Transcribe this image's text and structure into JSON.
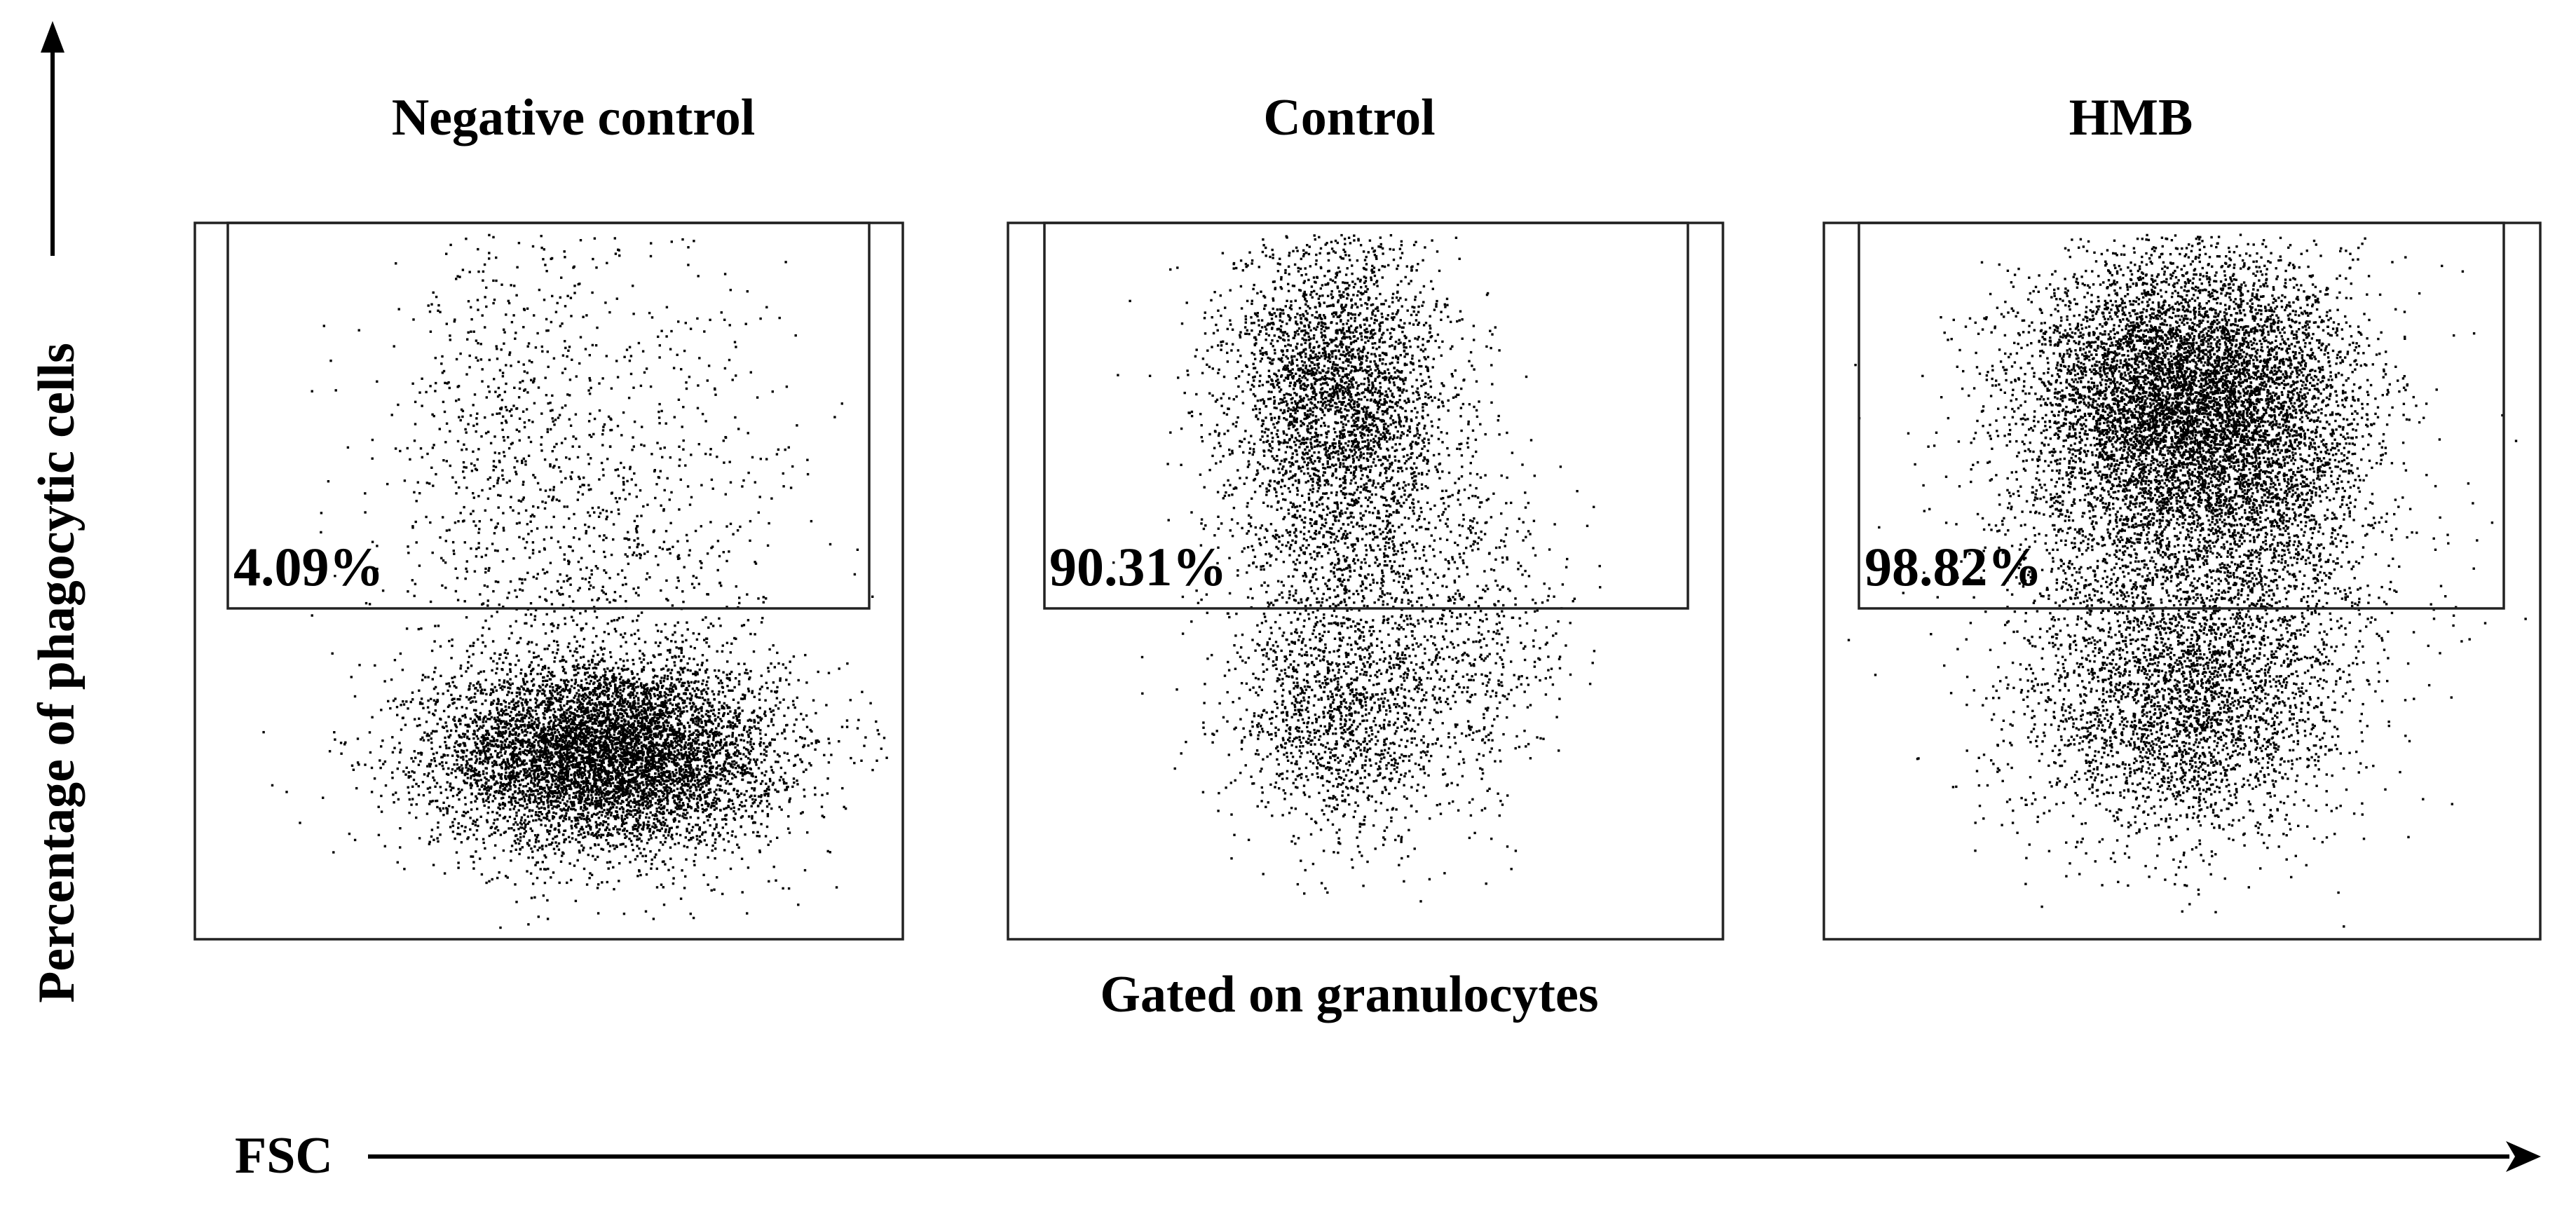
{
  "chart_data": {
    "type": "scatter",
    "y_axis_label": "Percentage of phagocytic cells",
    "x_axis_label": "FSC",
    "footer_label": "Gated on granulocytes",
    "grid": false,
    "point_color": "#000000",
    "panels": [
      {
        "title": "Negative control",
        "gate_percent": "4.09%",
        "clusters": [
          {
            "cx": 0.58,
            "cy": 0.26,
            "sx": 0.12,
            "sy": 0.065,
            "n": 7000
          },
          {
            "cx": 0.56,
            "cy": 0.56,
            "sx": 0.14,
            "sy": 0.22,
            "n": 1300
          },
          {
            "cx": 0.42,
            "cy": 0.72,
            "sx": 0.06,
            "sy": 0.13,
            "n": 260
          }
        ]
      },
      {
        "title": "Control",
        "gate_percent": "90.31%",
        "clusters": [
          {
            "cx": 0.46,
            "cy": 0.78,
            "sx": 0.075,
            "sy": 0.11,
            "n": 2600
          },
          {
            "cx": 0.48,
            "cy": 0.58,
            "sx": 0.09,
            "sy": 0.15,
            "n": 1500
          },
          {
            "cx": 0.47,
            "cy": 0.31,
            "sx": 0.08,
            "sy": 0.085,
            "n": 1300
          },
          {
            "cx": 0.66,
            "cy": 0.42,
            "sx": 0.06,
            "sy": 0.11,
            "n": 450
          }
        ]
      },
      {
        "title": "HMB",
        "gate_percent": "98.82%",
        "clusters": [
          {
            "cx": 0.5,
            "cy": 0.76,
            "sx": 0.11,
            "sy": 0.1,
            "n": 6500
          },
          {
            "cx": 0.52,
            "cy": 0.56,
            "sx": 0.13,
            "sy": 0.15,
            "n": 3000
          },
          {
            "cx": 0.5,
            "cy": 0.31,
            "sx": 0.11,
            "sy": 0.09,
            "n": 2400
          },
          {
            "cx": 0.64,
            "cy": 0.66,
            "sx": 0.06,
            "sy": 0.14,
            "n": 600
          }
        ]
      }
    ]
  }
}
